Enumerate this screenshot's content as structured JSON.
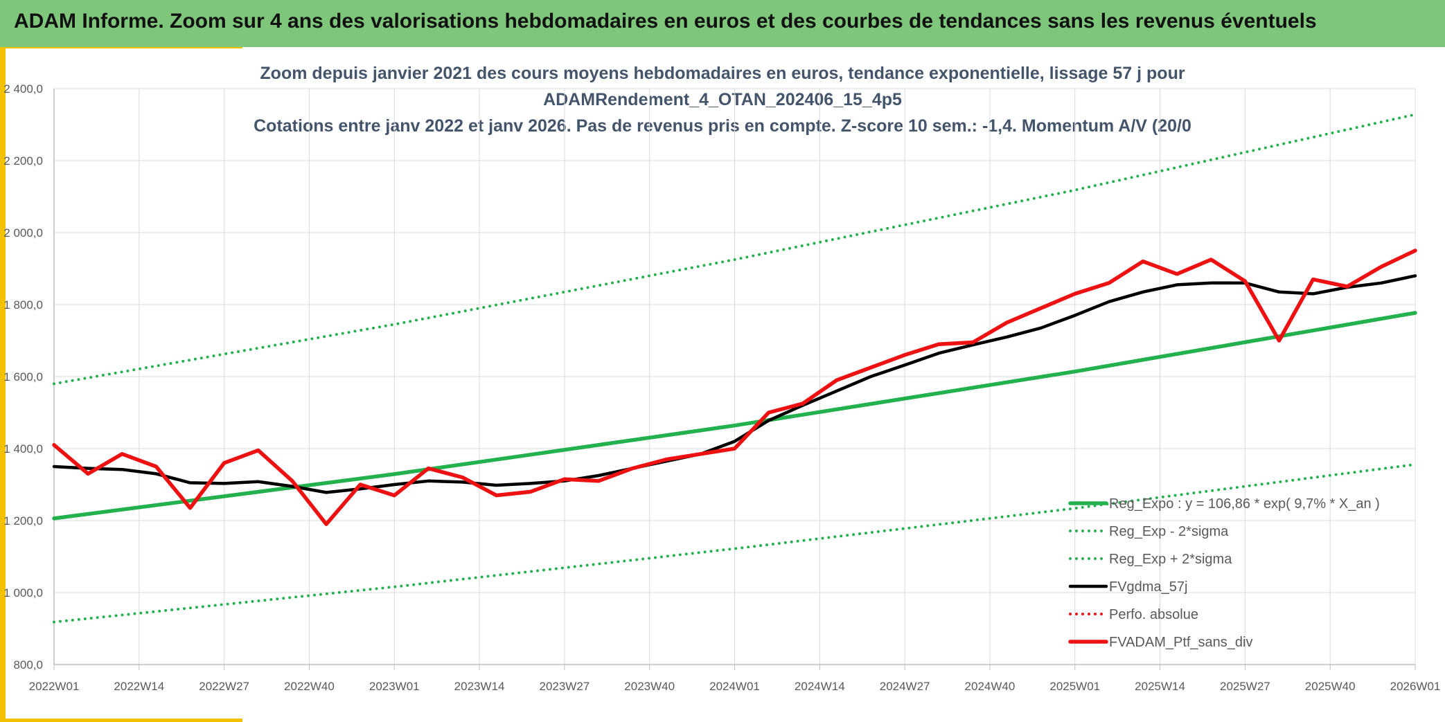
{
  "header": {
    "title": "ADAM Informe. Zoom sur 4 ans des valorisations hebdomadaires en euros et des courbes de tendances sans les revenus éventuels"
  },
  "colors": {
    "header_bg": "#7dc67a",
    "accent": "#f2c200",
    "green": "#22b14c",
    "black": "#000000",
    "red": "#ee1111",
    "grid": "#d9d9d9",
    "title_text": "#44546a"
  },
  "chart_data": {
    "type": "line",
    "title_lines": [
      "Zoom depuis janvier 2021 des cours moyens hebdomadaires en euros, tendance exponentielle, lissage 57 j pour",
      "ADAMRendement_4_OTAN_202406_15_4p5",
      "Cotations entre janv 2022 et janv 2026. Pas de revenus pris en compte. Z-score 10 sem.: -1,4. Momentum A/V (20/0"
    ],
    "x_tick_labels": [
      "2022W01",
      "2022W14",
      "2022W27",
      "2022W40",
      "2023W01",
      "2023W14",
      "2023W27",
      "2023W40",
      "2024W01",
      "2024W14",
      "2024W27",
      "2024W40",
      "2025W01",
      "2025W14",
      "2025W27",
      "2025W40",
      "2026W01"
    ],
    "y_tick_labels": [
      "800,0",
      "1 000,0",
      "1 200,0",
      "1 400,0",
      "1 600,0",
      "1 800,0",
      "2 000,0",
      "2 200,0",
      "2 400,0"
    ],
    "ylim": [
      800,
      2400
    ],
    "xlim": [
      0,
      4
    ],
    "grid": true,
    "legend_position": "bottom-right",
    "series": [
      {
        "name": "Reg_Expo : y = 106,86 * exp( 9,7% *  X_an )",
        "style": "solid-thick",
        "color": "#22b14c",
        "x": [
          0,
          1,
          2,
          3,
          4
        ],
        "y": [
          1206,
          1329,
          1464,
          1614,
          1777
        ]
      },
      {
        "name": "Reg_Exp - 2*sigma",
        "style": "dotted",
        "color": "#22b14c",
        "x": [
          0,
          1,
          2,
          3,
          4
        ],
        "y": [
          918,
          1016,
          1122,
          1234,
          1356
        ]
      },
      {
        "name": "Reg_Exp + 2*sigma",
        "style": "dotted",
        "color": "#22b14c",
        "x": [
          0,
          1,
          2,
          3,
          4
        ],
        "y": [
          1580,
          1745,
          1925,
          2118,
          2328
        ]
      },
      {
        "name": "FVgdma_57j",
        "style": "solid",
        "color": "#000000",
        "x": [
          0,
          0.1,
          0.2,
          0.3,
          0.4,
          0.5,
          0.6,
          0.7,
          0.8,
          0.9,
          1.0,
          1.1,
          1.2,
          1.3,
          1.4,
          1.5,
          1.6,
          1.7,
          1.8,
          1.9,
          2.0,
          2.1,
          2.2,
          2.3,
          2.4,
          2.5,
          2.6,
          2.7,
          2.8,
          2.9,
          3.0,
          3.1,
          3.2,
          3.3,
          3.4,
          3.5,
          3.6,
          3.7,
          3.8,
          3.9,
          4.0
        ],
        "y": [
          1350,
          1345,
          1342,
          1330,
          1305,
          1303,
          1308,
          1295,
          1278,
          1288,
          1300,
          1310,
          1307,
          1298,
          1303,
          1310,
          1325,
          1345,
          1365,
          1385,
          1420,
          1478,
          1520,
          1560,
          1600,
          1632,
          1665,
          1688,
          1710,
          1735,
          1770,
          1808,
          1835,
          1855,
          1860,
          1860,
          1835,
          1830,
          1848,
          1860,
          1880
        ]
      },
      {
        "name": "Perfo. absolue",
        "style": "dotted",
        "color": "#ee1111",
        "x": [],
        "y": []
      },
      {
        "name": "FVADAM_Ptf_sans_div",
        "style": "solid-thick",
        "color": "#ee1111",
        "x": [
          0,
          0.1,
          0.2,
          0.3,
          0.4,
          0.5,
          0.6,
          0.7,
          0.8,
          0.9,
          1.0,
          1.1,
          1.2,
          1.3,
          1.4,
          1.5,
          1.6,
          1.7,
          1.8,
          1.9,
          2.0,
          2.1,
          2.2,
          2.3,
          2.4,
          2.5,
          2.6,
          2.7,
          2.8,
          2.9,
          3.0,
          3.1,
          3.2,
          3.3,
          3.4,
          3.5,
          3.6,
          3.7,
          3.8,
          3.9,
          4.0
        ],
        "y": [
          1410,
          1330,
          1385,
          1350,
          1235,
          1360,
          1395,
          1310,
          1190,
          1300,
          1270,
          1345,
          1320,
          1270,
          1280,
          1315,
          1310,
          1345,
          1370,
          1385,
          1400,
          1500,
          1525,
          1590,
          1625,
          1660,
          1690,
          1695,
          1750,
          1790,
          1830,
          1860,
          1920,
          1885,
          1925,
          1865,
          1700,
          1870,
          1850,
          1905,
          1950
        ]
      }
    ]
  }
}
